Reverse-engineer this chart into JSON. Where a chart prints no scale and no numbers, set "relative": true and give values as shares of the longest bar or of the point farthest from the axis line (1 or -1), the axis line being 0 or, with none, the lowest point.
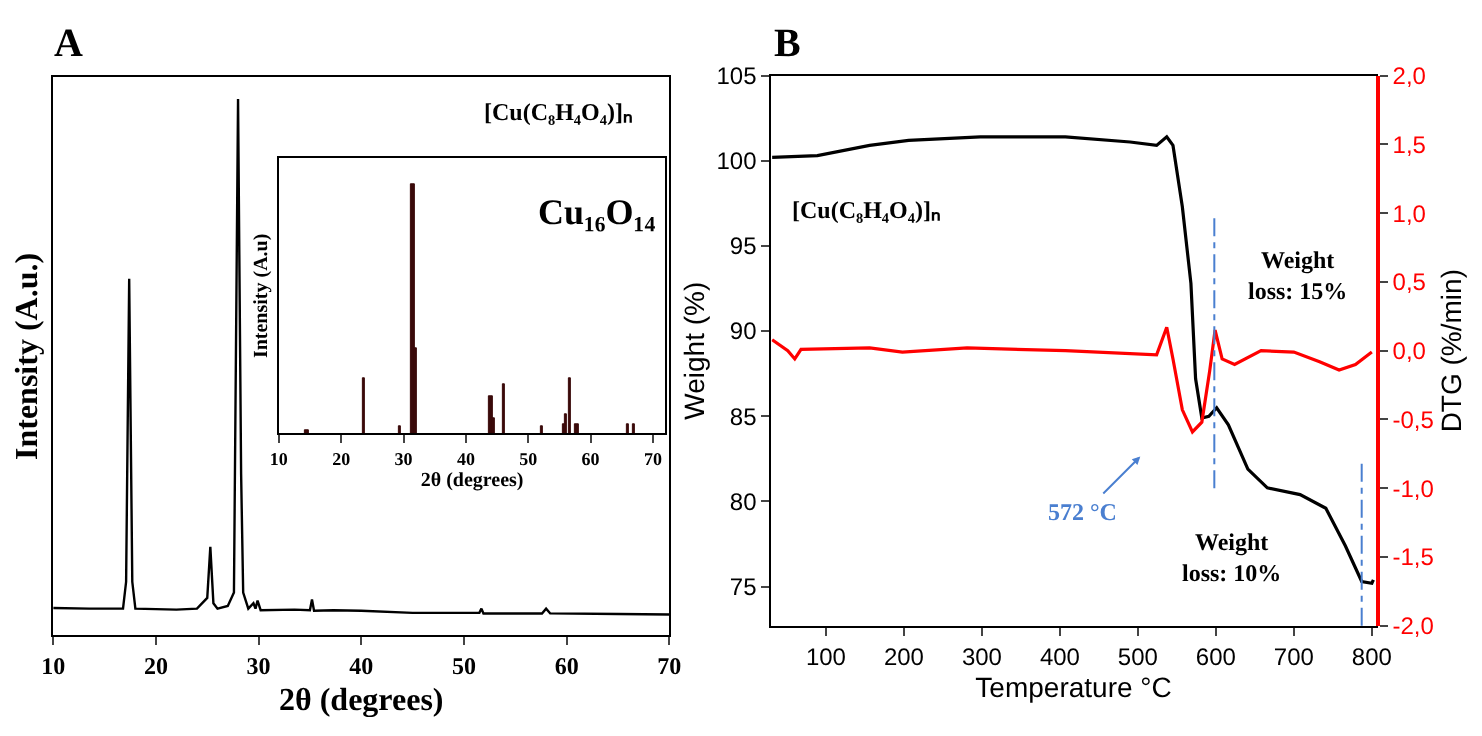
{
  "chart_data": [
    {
      "type": "line",
      "title": "A",
      "relative": true,
      "xlabel": "2θ (degrees)",
      "ylabel": "Intensity (A.u.)",
      "xlim": [
        10,
        70
      ],
      "xticks": [
        10,
        20,
        30,
        40,
        50,
        60,
        70
      ],
      "annotations": [
        "[Cu(C₈H₄O₄)]ₙ"
      ],
      "series": [
        {
          "color": "#000000",
          "x": [
            10,
            13.5,
            16.8,
            17.1,
            17.4,
            17.7,
            18,
            22,
            24,
            25.0,
            25.3,
            25.6,
            26,
            27,
            27.6,
            28.0,
            28.3,
            28.5,
            29,
            29.5,
            29.7,
            29.9,
            30.2,
            33.5,
            35.0,
            35.2,
            35.4,
            37.3,
            40,
            45,
            51.5,
            51.7,
            51.9,
            57.6,
            58,
            58.4,
            65,
            70
          ],
          "values": [
            0.051,
            0.05,
            0.05,
            0.1,
            0.665,
            0.1,
            0.05,
            0.048,
            0.05,
            0.07,
            0.165,
            0.06,
            0.05,
            0.055,
            0.08,
            1.0,
            0.3,
            0.08,
            0.05,
            0.06,
            0.05,
            0.065,
            0.047,
            0.048,
            0.047,
            0.067,
            0.046,
            0.047,
            0.046,
            0.042,
            0.042,
            0.05,
            0.041,
            0.041,
            0.05,
            0.041,
            0.04,
            0.039
          ]
        }
      ]
    },
    {
      "type": "bar",
      "relative": true,
      "xlabel": "2θ (degrees)",
      "ylabel": "Intensity (A.u)",
      "xlim": [
        10,
        72
      ],
      "xticks": [
        10,
        20,
        30,
        40,
        50,
        60,
        70
      ],
      "annotations": [
        "Cu₁₆O₁₄"
      ],
      "series": [
        {
          "color": "#3a0a0a",
          "x": [
            14.5,
            23.6,
            29.3,
            31.5,
            32.0,
            44.0,
            44.5,
            46.0,
            52.3,
            55.6,
            56.0,
            56.8,
            57.8,
            66.0,
            67.0
          ],
          "values": [
            0.01,
            0.22,
            0.03,
            1.0,
            0.34,
            0.15,
            0.06,
            0.2,
            0.03,
            0.04,
            0.08,
            0.22,
            0.04,
            0.04,
            0.04
          ]
        }
      ]
    },
    {
      "type": "line",
      "title": "B",
      "xlabel": "Temperature °C",
      "ylabel": "Weight (%)",
      "y2label": "DTG (%/min)",
      "xlim": [
        30,
        805
      ],
      "xticks": [
        100,
        200,
        300,
        400,
        500,
        600,
        700,
        800
      ],
      "ylim": [
        72.7,
        105
      ],
      "yticks": [
        75,
        80,
        85,
        90,
        95,
        100,
        105
      ],
      "y2lim": [
        -2,
        2
      ],
      "y2ticks": [
        {
          "value": -2,
          "label": "-2,0"
        },
        {
          "value": -1.5,
          "label": "-1,5"
        },
        {
          "value": -1,
          "label": "-1,0"
        },
        {
          "value": -0.5,
          "label": "-0,5"
        },
        {
          "value": 0,
          "label": "0,0"
        },
        {
          "value": 0.5,
          "label": "0,5"
        },
        {
          "value": 1,
          "label": "1,0"
        },
        {
          "value": 1.5,
          "label": "1,5"
        },
        {
          "value": 2,
          "label": "2,0"
        }
      ],
      "annotations": [
        "[Cu(C₈H₄O₄)]ₙ",
        "Weight\nloss: 15%",
        "Weight\nloss: 10%",
        "572 °C"
      ],
      "ref_lines": [
        {
          "axis": "x",
          "value": 598,
          "color": "#4a7fd0",
          "line_style": "dashdot"
        },
        {
          "axis": "x",
          "value": 787,
          "color": "#4a7fd0",
          "line_style": "dashdot"
        }
      ],
      "series": [
        {
          "color": "#000000",
          "x": [
            31,
            89,
            156,
            206,
            298,
            407,
            490,
            524,
            537,
            545,
            557,
            568,
            574,
            582,
            591,
            601,
            616,
            641,
            666,
            708,
            741,
            766,
            787,
            800,
            802
          ],
          "values": [
            100.2,
            100.3,
            100.9,
            101.2,
            101.4,
            101.4,
            101.1,
            100.9,
            101.4,
            100.9,
            97.3,
            92.8,
            87.2,
            84.9,
            85.0,
            85.5,
            84.5,
            81.9,
            80.8,
            80.4,
            79.6,
            77.4,
            75.3,
            75.2,
            75.4
          ]
        },
        {
          "color": "#ff0000",
          "axis": "y2",
          "x": [
            31,
            51,
            60,
            68,
            156,
            198,
            281,
            407,
            524,
            537,
            545,
            557,
            570,
            582,
            592,
            599,
            608,
            624,
            658,
            700,
            733,
            758,
            779,
            800
          ],
          "values": [
            0.08,
            0.0,
            -0.06,
            0.01,
            0.02,
            -0.01,
            0.02,
            0.0,
            -0.03,
            0.17,
            -0.06,
            -0.43,
            -0.59,
            -0.52,
            -0.15,
            0.15,
            -0.06,
            -0.1,
            0.0,
            -0.01,
            -0.08,
            -0.14,
            -0.1,
            -0.01
          ]
        }
      ]
    }
  ]
}
